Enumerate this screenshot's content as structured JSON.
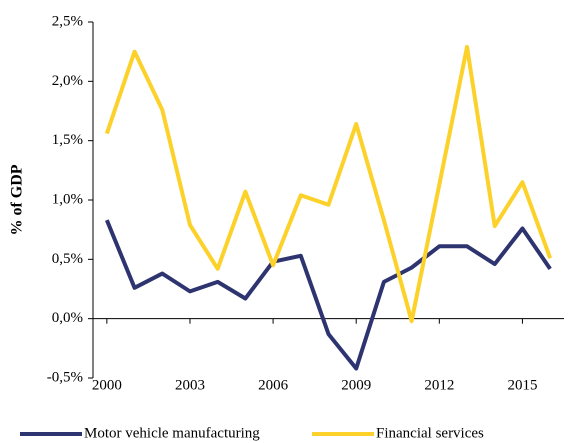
{
  "chart_data": {
    "type": "line",
    "y_label": "% of GDP",
    "x": [
      2000,
      2001,
      2002,
      2003,
      2004,
      2005,
      2006,
      2007,
      2008,
      2009,
      2010,
      2011,
      2012,
      2013,
      2014,
      2015,
      2016
    ],
    "xlim": [
      1999.5,
      2016.5
    ],
    "xticks": [
      2000,
      2003,
      2006,
      2009,
      2012,
      2015
    ],
    "ylim": [
      -0.5,
      2.5
    ],
    "yticks": [
      {
        "value": -0.5,
        "label": "-0,5%"
      },
      {
        "value": 0,
        "label": "0,0%"
      },
      {
        "value": 0.5,
        "label": "0,5%"
      },
      {
        "value": 1,
        "label": "1,0%"
      },
      {
        "value": 1.5,
        "label": "1,5%"
      },
      {
        "value": 2,
        "label": "2,0%"
      },
      {
        "value": 2.5,
        "label": "2,5%"
      }
    ],
    "series": [
      {
        "name": "Motor vehicle manufacturing",
        "color": "#2e3470",
        "values": [
          0.83,
          0.26,
          0.38,
          0.23,
          0.31,
          0.17,
          0.48,
          0.53,
          -0.13,
          -0.42,
          0.31,
          0.43,
          0.61,
          0.61,
          0.46,
          0.76,
          0.42
        ]
      },
      {
        "name": "Financial services",
        "color": "#fcd12a",
        "values": [
          1.56,
          2.25,
          1.76,
          0.79,
          0.42,
          1.07,
          0.45,
          1.04,
          0.96,
          1.64,
          0.83,
          -0.02,
          1.13,
          2.29,
          0.78,
          1.15,
          0.51
        ]
      }
    ]
  }
}
